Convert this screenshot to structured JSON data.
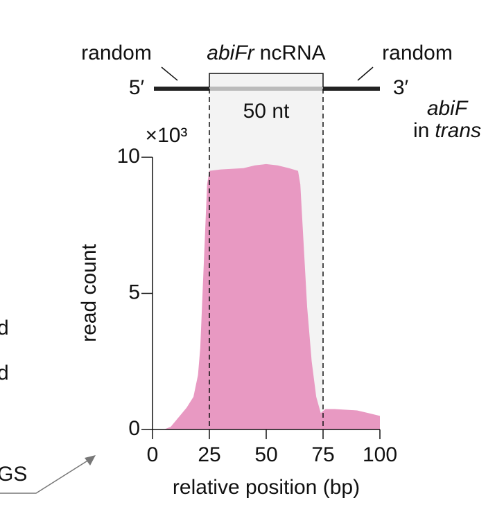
{
  "chart_data": {
    "type": "area",
    "y_multiplier": "×10³",
    "xlabel": "relative position (bp)",
    "ylabel": "read count",
    "x": [
      5,
      8,
      10,
      12,
      15,
      18,
      20,
      21,
      22,
      23,
      24,
      25,
      30,
      40,
      45,
      50,
      55,
      60,
      64,
      65,
      66,
      67,
      68,
      70,
      72,
      74,
      76,
      80,
      90,
      95,
      100
    ],
    "values": [
      0,
      0.1,
      0.3,
      0.5,
      0.8,
      1.2,
      2.0,
      3.0,
      5.0,
      7.0,
      9.0,
      9.5,
      9.55,
      9.6,
      9.7,
      9.75,
      9.7,
      9.6,
      9.5,
      9.0,
      7.5,
      6.0,
      4.5,
      2.5,
      1.2,
      0.6,
      0.75,
      0.75,
      0.7,
      0.6,
      0.5
    ],
    "color": "#e899c2",
    "xlim": [
      0,
      100
    ],
    "ylim": [
      0,
      10
    ],
    "xticks": [
      0,
      25,
      50,
      75,
      100
    ],
    "yticks": [
      0,
      5,
      10
    ],
    "highlight": [
      25,
      75
    ],
    "construct": {
      "left_label": "random",
      "right_label": "random",
      "insert_label_italic": "abiFr",
      "insert_label": "ncRNA",
      "five_prime": "5′",
      "three_prime": "3′",
      "length_label": "50 nt",
      "side_label_italic": "abiF",
      "side_label_in": "in",
      "side_label_trans": "trans"
    },
    "fragments": [
      "d",
      "d",
      "GS"
    ]
  }
}
